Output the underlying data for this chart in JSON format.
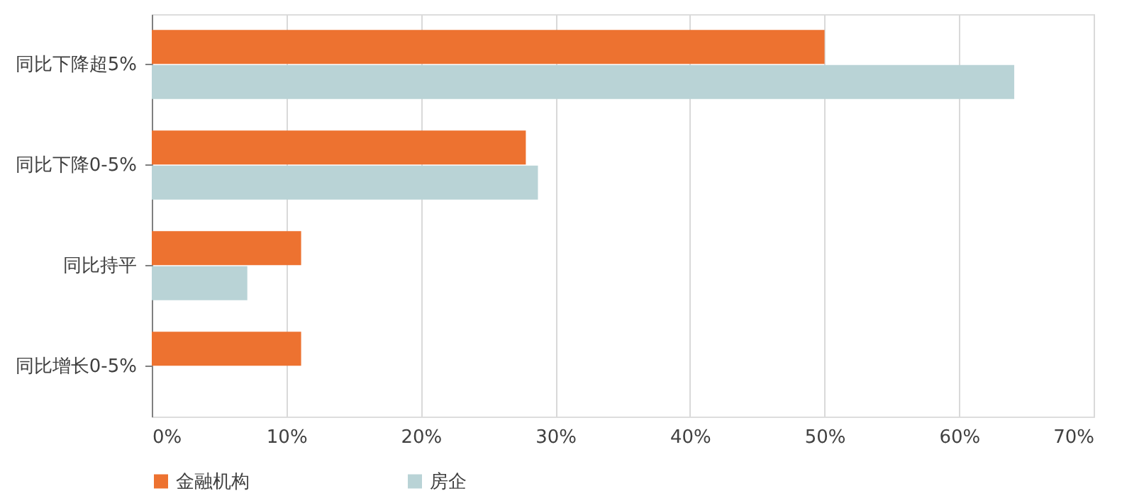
{
  "chart_data": {
    "type": "bar",
    "orientation": "horizontal",
    "categories": [
      "同比下降超5%",
      "同比下降0-5%",
      "同比持平",
      "同比增长0-5%"
    ],
    "series": [
      {
        "name": "金融机构",
        "color": "#ed7230",
        "values": [
          50,
          27.8,
          11.1,
          11.1
        ]
      },
      {
        "name": "房企",
        "color": "#b9d3d6",
        "values": [
          64.1,
          28.7,
          7.1,
          0
        ]
      }
    ],
    "xlim": [
      0,
      70
    ],
    "xticks": [
      {
        "value": 0,
        "label": "0%"
      },
      {
        "value": 10,
        "label": "10%"
      },
      {
        "value": 20,
        "label": "20%"
      },
      {
        "value": 30,
        "label": "30%"
      },
      {
        "value": 40,
        "label": "40%"
      },
      {
        "value": 50,
        "label": "50%"
      },
      {
        "value": 60,
        "label": "60%"
      },
      {
        "value": 70,
        "label": "70%"
      }
    ],
    "grid": "x",
    "legend": "bottom"
  }
}
